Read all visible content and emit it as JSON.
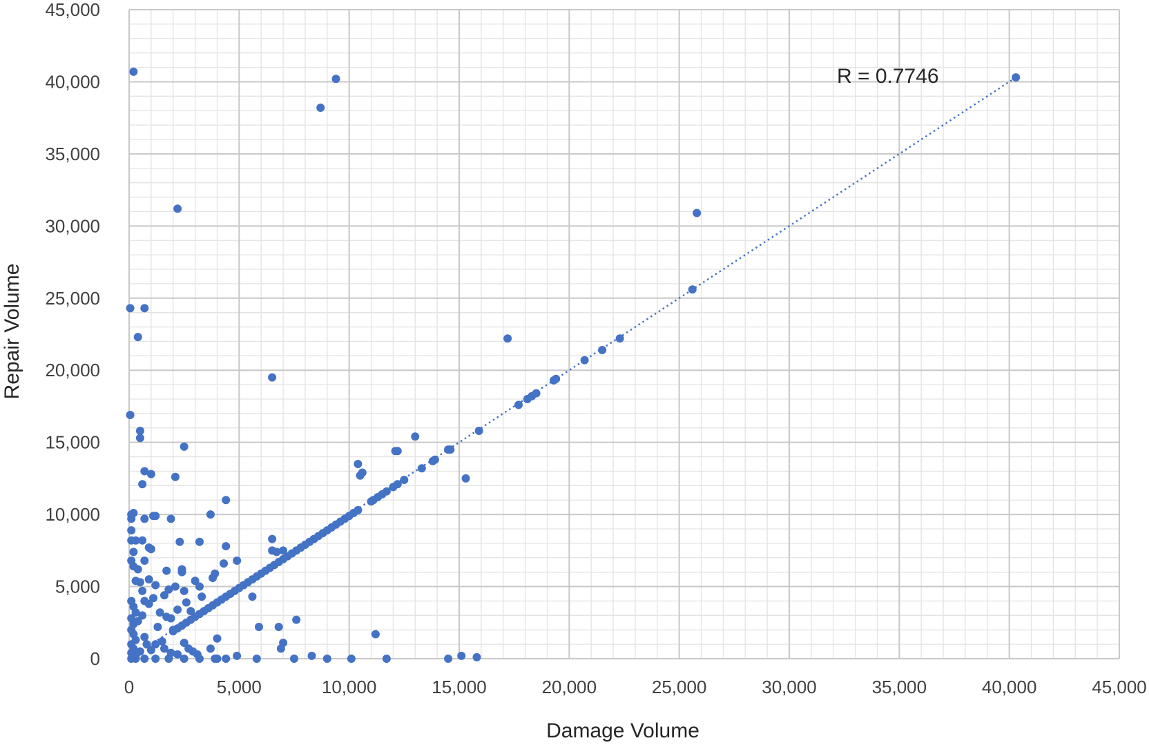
{
  "chart_data": {
    "type": "scatter",
    "title": "",
    "xlabel": "Damage Volume",
    "ylabel": "Repair Volume",
    "xlim": [
      0,
      45000
    ],
    "ylim": [
      0,
      45000
    ],
    "x_ticks": [
      0,
      5000,
      10000,
      15000,
      20000,
      25000,
      30000,
      35000,
      40000,
      45000
    ],
    "y_ticks": [
      0,
      5000,
      10000,
      15000,
      20000,
      25000,
      30000,
      35000,
      40000,
      45000
    ],
    "x_tick_labels": [
      "0",
      "5,000",
      "10,000",
      "15,000",
      "20,000",
      "25,000",
      "30,000",
      "35,000",
      "40,000",
      "45,000"
    ],
    "y_tick_labels": [
      "0",
      "5,000",
      "10,000",
      "15,000",
      "20,000",
      "25,000",
      "30,000",
      "35,000",
      "40,000",
      "45,000"
    ],
    "minor_grid_step": 1000,
    "grid": true,
    "legend": "none",
    "annotation": "R = 0.7746",
    "marker_color": "#4472C4",
    "trendline": {
      "style": "dotted",
      "color": "#4472C4",
      "points": [
        [
          0,
          0
        ],
        [
          40300,
          40300
        ]
      ]
    },
    "series": [
      {
        "values": [
          [
            200,
            40700
          ],
          [
            9400,
            40200
          ],
          [
            8700,
            38200
          ],
          [
            40300,
            40300
          ],
          [
            2200,
            31200
          ],
          [
            25800,
            30900
          ],
          [
            25600,
            25600
          ],
          [
            50,
            24300
          ],
          [
            700,
            24300
          ],
          [
            400,
            22300
          ],
          [
            17200,
            22200
          ],
          [
            22300,
            22200
          ],
          [
            21500,
            21400
          ],
          [
            20700,
            20700
          ],
          [
            19400,
            19400
          ],
          [
            19300,
            19300
          ],
          [
            6500,
            19500
          ],
          [
            18500,
            18400
          ],
          [
            18300,
            18200
          ],
          [
            18100,
            18000
          ],
          [
            17700,
            17600
          ],
          [
            50,
            16900
          ],
          [
            500,
            15800
          ],
          [
            500,
            15300
          ],
          [
            15900,
            15800
          ],
          [
            2500,
            14700
          ],
          [
            14600,
            14500
          ],
          [
            14500,
            14500
          ],
          [
            13000,
            15400
          ],
          [
            12200,
            14400
          ],
          [
            12100,
            14400
          ],
          [
            13900,
            13800
          ],
          [
            13800,
            13700
          ],
          [
            13300,
            13200
          ],
          [
            10400,
            13500
          ],
          [
            10600,
            12900
          ],
          [
            10500,
            12700
          ],
          [
            700,
            13000
          ],
          [
            1000,
            12800
          ],
          [
            2100,
            12600
          ],
          [
            600,
            12100
          ],
          [
            15300,
            12500
          ],
          [
            12500,
            12400
          ],
          [
            12200,
            12100
          ],
          [
            12000,
            11900
          ],
          [
            11700,
            11600
          ],
          [
            11500,
            11400
          ],
          [
            11300,
            11200
          ],
          [
            11100,
            11000
          ],
          [
            11000,
            10900
          ],
          [
            4400,
            11000
          ],
          [
            10400,
            10300
          ],
          [
            10200,
            10100
          ],
          [
            10000,
            9900
          ],
          [
            9800,
            9700
          ],
          [
            9600,
            9500
          ],
          [
            9400,
            9300
          ],
          [
            9200,
            9100
          ],
          [
            9000,
            8900
          ],
          [
            8800,
            8700
          ],
          [
            8600,
            8500
          ],
          [
            8400,
            8300
          ],
          [
            8200,
            8100
          ],
          [
            8000,
            7900
          ],
          [
            7800,
            7700
          ],
          [
            7600,
            7500
          ],
          [
            7400,
            7300
          ],
          [
            7200,
            7100
          ],
          [
            7000,
            6900
          ],
          [
            6800,
            6700
          ],
          [
            6600,
            6500
          ],
          [
            6400,
            6300
          ],
          [
            6200,
            6100
          ],
          [
            6000,
            5900
          ],
          [
            5800,
            5700
          ],
          [
            5600,
            5500
          ],
          [
            5400,
            5300
          ],
          [
            5200,
            5100
          ],
          [
            5000,
            4900
          ],
          [
            4800,
            4700
          ],
          [
            4600,
            4500
          ],
          [
            4400,
            4300
          ],
          [
            4200,
            4100
          ],
          [
            4000,
            3900
          ],
          [
            3800,
            3700
          ],
          [
            3600,
            3500
          ],
          [
            3400,
            3300
          ],
          [
            3200,
            3100
          ],
          [
            3000,
            2900
          ],
          [
            2800,
            2700
          ],
          [
            2600,
            2500
          ],
          [
            2400,
            2300
          ],
          [
            2200,
            2100
          ],
          [
            2000,
            1900
          ],
          [
            100,
            10000
          ],
          [
            200,
            10100
          ],
          [
            100,
            9700
          ],
          [
            700,
            9700
          ],
          [
            1100,
            9900
          ],
          [
            1200,
            9900
          ],
          [
            1900,
            9700
          ],
          [
            3700,
            10000
          ],
          [
            100,
            8900
          ],
          [
            100,
            8200
          ],
          [
            300,
            8200
          ],
          [
            600,
            8200
          ],
          [
            2300,
            8100
          ],
          [
            3200,
            8100
          ],
          [
            6500,
            8300
          ],
          [
            4400,
            7800
          ],
          [
            900,
            7700
          ],
          [
            1000,
            7600
          ],
          [
            6500,
            7500
          ],
          [
            6700,
            7400
          ],
          [
            7000,
            7500
          ],
          [
            200,
            7400
          ],
          [
            100,
            6800
          ],
          [
            700,
            6800
          ],
          [
            4900,
            6800
          ],
          [
            200,
            6400
          ],
          [
            400,
            6200
          ],
          [
            4300,
            6600
          ],
          [
            1700,
            6100
          ],
          [
            2400,
            6200
          ],
          [
            2400,
            6000
          ],
          [
            3900,
            5900
          ],
          [
            3800,
            5600
          ],
          [
            300,
            5400
          ],
          [
            500,
            5300
          ],
          [
            900,
            5500
          ],
          [
            2100,
            5000
          ],
          [
            1800,
            4800
          ],
          [
            1200,
            5100
          ],
          [
            3000,
            5400
          ],
          [
            3200,
            5000
          ],
          [
            5600,
            4300
          ],
          [
            3300,
            4300
          ],
          [
            1600,
            4400
          ],
          [
            600,
            4700
          ],
          [
            2500,
            4700
          ],
          [
            100,
            4000
          ],
          [
            200,
            3600
          ],
          [
            300,
            3200
          ],
          [
            100,
            2800
          ],
          [
            200,
            2400
          ],
          [
            100,
            2000
          ],
          [
            200,
            1700
          ],
          [
            300,
            1300
          ],
          [
            100,
            1000
          ],
          [
            200,
            700
          ],
          [
            100,
            400
          ],
          [
            300,
            200
          ],
          [
            500,
            500
          ],
          [
            800,
            1000
          ],
          [
            1000,
            600
          ],
          [
            700,
            1500
          ],
          [
            1300,
            2200
          ],
          [
            1500,
            1200
          ],
          [
            1900,
            2800
          ],
          [
            2200,
            3400
          ],
          [
            2600,
            3900
          ],
          [
            2800,
            3300
          ],
          [
            2000,
            2000
          ],
          [
            400,
            2600
          ],
          [
            600,
            3000
          ],
          [
            900,
            3800
          ],
          [
            1100,
            4200
          ],
          [
            700,
            4000
          ],
          [
            1400,
            3200
          ],
          [
            1700,
            2900
          ],
          [
            1200,
            1000
          ],
          [
            1600,
            700
          ],
          [
            1900,
            400
          ],
          [
            2200,
            300
          ],
          [
            2700,
            700
          ],
          [
            2900,
            500
          ],
          [
            3100,
            300
          ],
          [
            2500,
            1100
          ],
          [
            5900,
            2200
          ],
          [
            6800,
            2200
          ],
          [
            7600,
            2700
          ],
          [
            11200,
            1700
          ],
          [
            4000,
            1400
          ],
          [
            7000,
            1100
          ],
          [
            6900,
            700
          ],
          [
            3700,
            700
          ],
          [
            4900,
            200
          ],
          [
            8300,
            200
          ],
          [
            15100,
            200
          ],
          [
            15800,
            100
          ],
          [
            3900,
            0
          ],
          [
            4000,
            0
          ],
          [
            4400,
            0
          ],
          [
            5800,
            0
          ],
          [
            7500,
            0
          ],
          [
            9000,
            0
          ],
          [
            10100,
            0
          ],
          [
            11700,
            0
          ],
          [
            14500,
            0
          ],
          [
            3200,
            0
          ],
          [
            2500,
            0
          ],
          [
            1800,
            0
          ],
          [
            1200,
            0
          ],
          [
            700,
            0
          ],
          [
            300,
            0
          ],
          [
            100,
            0
          ]
        ]
      }
    ]
  }
}
